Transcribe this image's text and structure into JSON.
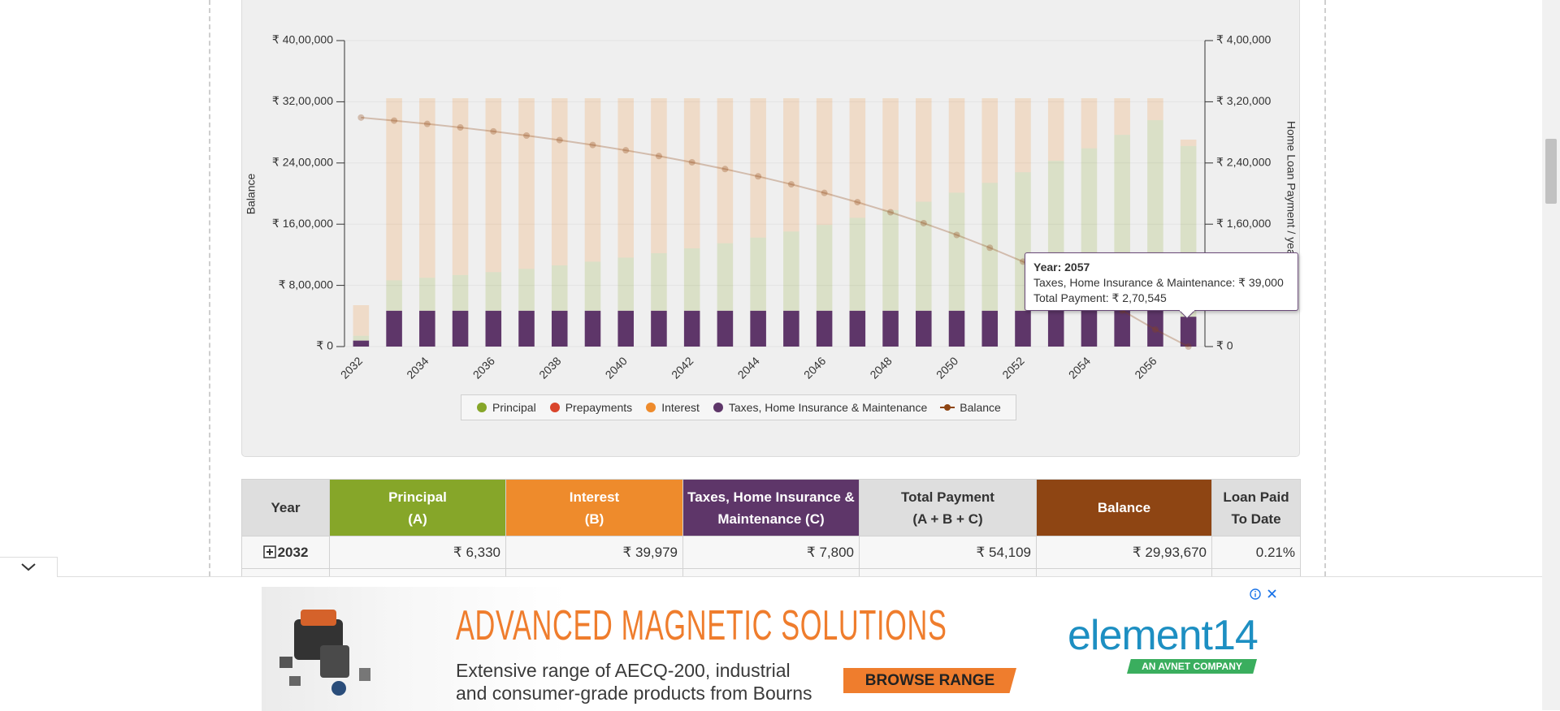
{
  "chart_data": {
    "type": "bar",
    "y_label": "Balance",
    "y2_label": "Home Loan Payment / year",
    "categories": [
      "2032",
      null,
      "2034",
      null,
      "2036",
      null,
      "2038",
      null,
      "2040",
      null,
      "2042",
      null,
      "2044",
      null,
      "2046",
      null,
      "2048",
      null,
      "2050",
      null,
      "2052",
      null,
      "2054",
      null,
      "2056",
      null
    ],
    "ylim": [
      0,
      4000000
    ],
    "yticks": [
      {
        "value": 0,
        "label": "₹ 0"
      },
      {
        "value": 800000,
        "label": "₹ 8,00,000"
      },
      {
        "value": 1600000,
        "label": "₹ 16,00,000"
      },
      {
        "value": 2400000,
        "label": "₹ 24,00,000"
      },
      {
        "value": 3200000,
        "label": "₹ 32,00,000"
      },
      {
        "value": 4000000,
        "label": "₹ 40,00,000"
      }
    ],
    "y2lim": [
      0,
      400000
    ],
    "y2ticks": [
      {
        "value": 0,
        "label": "₹ 0"
      },
      {
        "value": 80000,
        "label": "₹ 80,000"
      },
      {
        "value": 160000,
        "label": "₹ 1,60,000"
      },
      {
        "value": 240000,
        "label": "₹ 2,40,000"
      },
      {
        "value": 320000,
        "label": "₹ 3,20,000"
      },
      {
        "value": 400000,
        "label": "₹ 4,00,000"
      }
    ],
    "grid": true,
    "stack_order": [
      3,
      0,
      1,
      2
    ],
    "highlighted_series": 3,
    "series": [
      {
        "name": "Principal",
        "color": "#86a629",
        "axis": "y2",
        "values": [
          6330,
          39799,
          43101,
          46681,
          50555,
          54750,
          59294,
          64216,
          69548,
          75316,
          81568,
          88340,
          95670,
          103617,
          112213,
          121525,
          131614,
          142539,
          154367,
          167180,
          181056,
          196084,
          212358,
          229985,
          249077,
          223217
        ]
      },
      {
        "name": "Prepayments",
        "color": "#d9452b",
        "axis": "y2",
        "values": [
          0,
          0,
          0,
          0,
          0,
          0,
          0,
          0,
          0,
          0,
          0,
          0,
          0,
          0,
          0,
          0,
          0,
          0,
          0,
          0,
          0,
          0,
          0,
          0,
          0,
          0
        ]
      },
      {
        "name": "Interest",
        "color": "#ee8b2c",
        "axis": "y2",
        "values": [
          39979,
          238055,
          234753,
          231173,
          227299,
          223104,
          218560,
          213638,
          208306,
          202538,
          196286,
          189514,
          182184,
          174237,
          165641,
          156329,
          146240,
          135315,
          123487,
          110674,
          96798,
          81770,
          65496,
          47869,
          28777,
          8328
        ]
      },
      {
        "name": "Taxes, Home Insurance & Maintenance",
        "color": "#5e3669",
        "axis": "y2",
        "values": [
          7800,
          46800,
          46800,
          46800,
          46800,
          46800,
          46800,
          46800,
          46800,
          46800,
          46800,
          46800,
          46800,
          46800,
          46800,
          46800,
          46800,
          46800,
          46800,
          46800,
          46800,
          46800,
          46800,
          46800,
          46800,
          39000
        ]
      },
      {
        "name": "Balance",
        "color": "#8e4513",
        "type": "line",
        "values": [
          2993670,
          2953871,
          2910770,
          2864089,
          2813534,
          2758784,
          2699490,
          2635274,
          2565726,
          2490410,
          2408842,
          2320502,
          2224832,
          2121215,
          2009002,
          1887477,
          1755863,
          1613324,
          1458957,
          1291777,
          1110721,
          914637,
          702279,
          472294,
          223217,
          0
        ]
      }
    ],
    "tooltip": {
      "lines": [
        "Year: 2057",
        "Taxes, Home Insurance & Maintenance: ₹ 39,000",
        "Total Payment: ₹ 2,70,545"
      ]
    }
  },
  "table": {
    "header": [
      [
        "Year"
      ],
      [
        "Principal",
        "(A)"
      ],
      [
        "Interest",
        "(B)"
      ],
      [
        "Taxes, Home Insurance &",
        "Maintenance (C)"
      ],
      [
        "Total Payment",
        "(A + B + C)"
      ],
      [
        "Balance"
      ],
      [
        "Loan Paid",
        "To Date"
      ]
    ],
    "rows": [
      [
        "2032",
        "₹ 6,330",
        "₹ 39,979",
        "₹ 7,800",
        "₹ 54,109",
        "₹ 29,93,670",
        "0.21%"
      ]
    ]
  },
  "ad": {
    "headline": "ADVANCED MAGNETIC SOLUTIONS",
    "line1": "Extensive range of AECQ-200, industrial",
    "line2": "and consumer-grade products from Bourns",
    "button": "BROWSE RANGE",
    "brand": "element14",
    "brand_tag": "AN AVNET COMPANY"
  }
}
